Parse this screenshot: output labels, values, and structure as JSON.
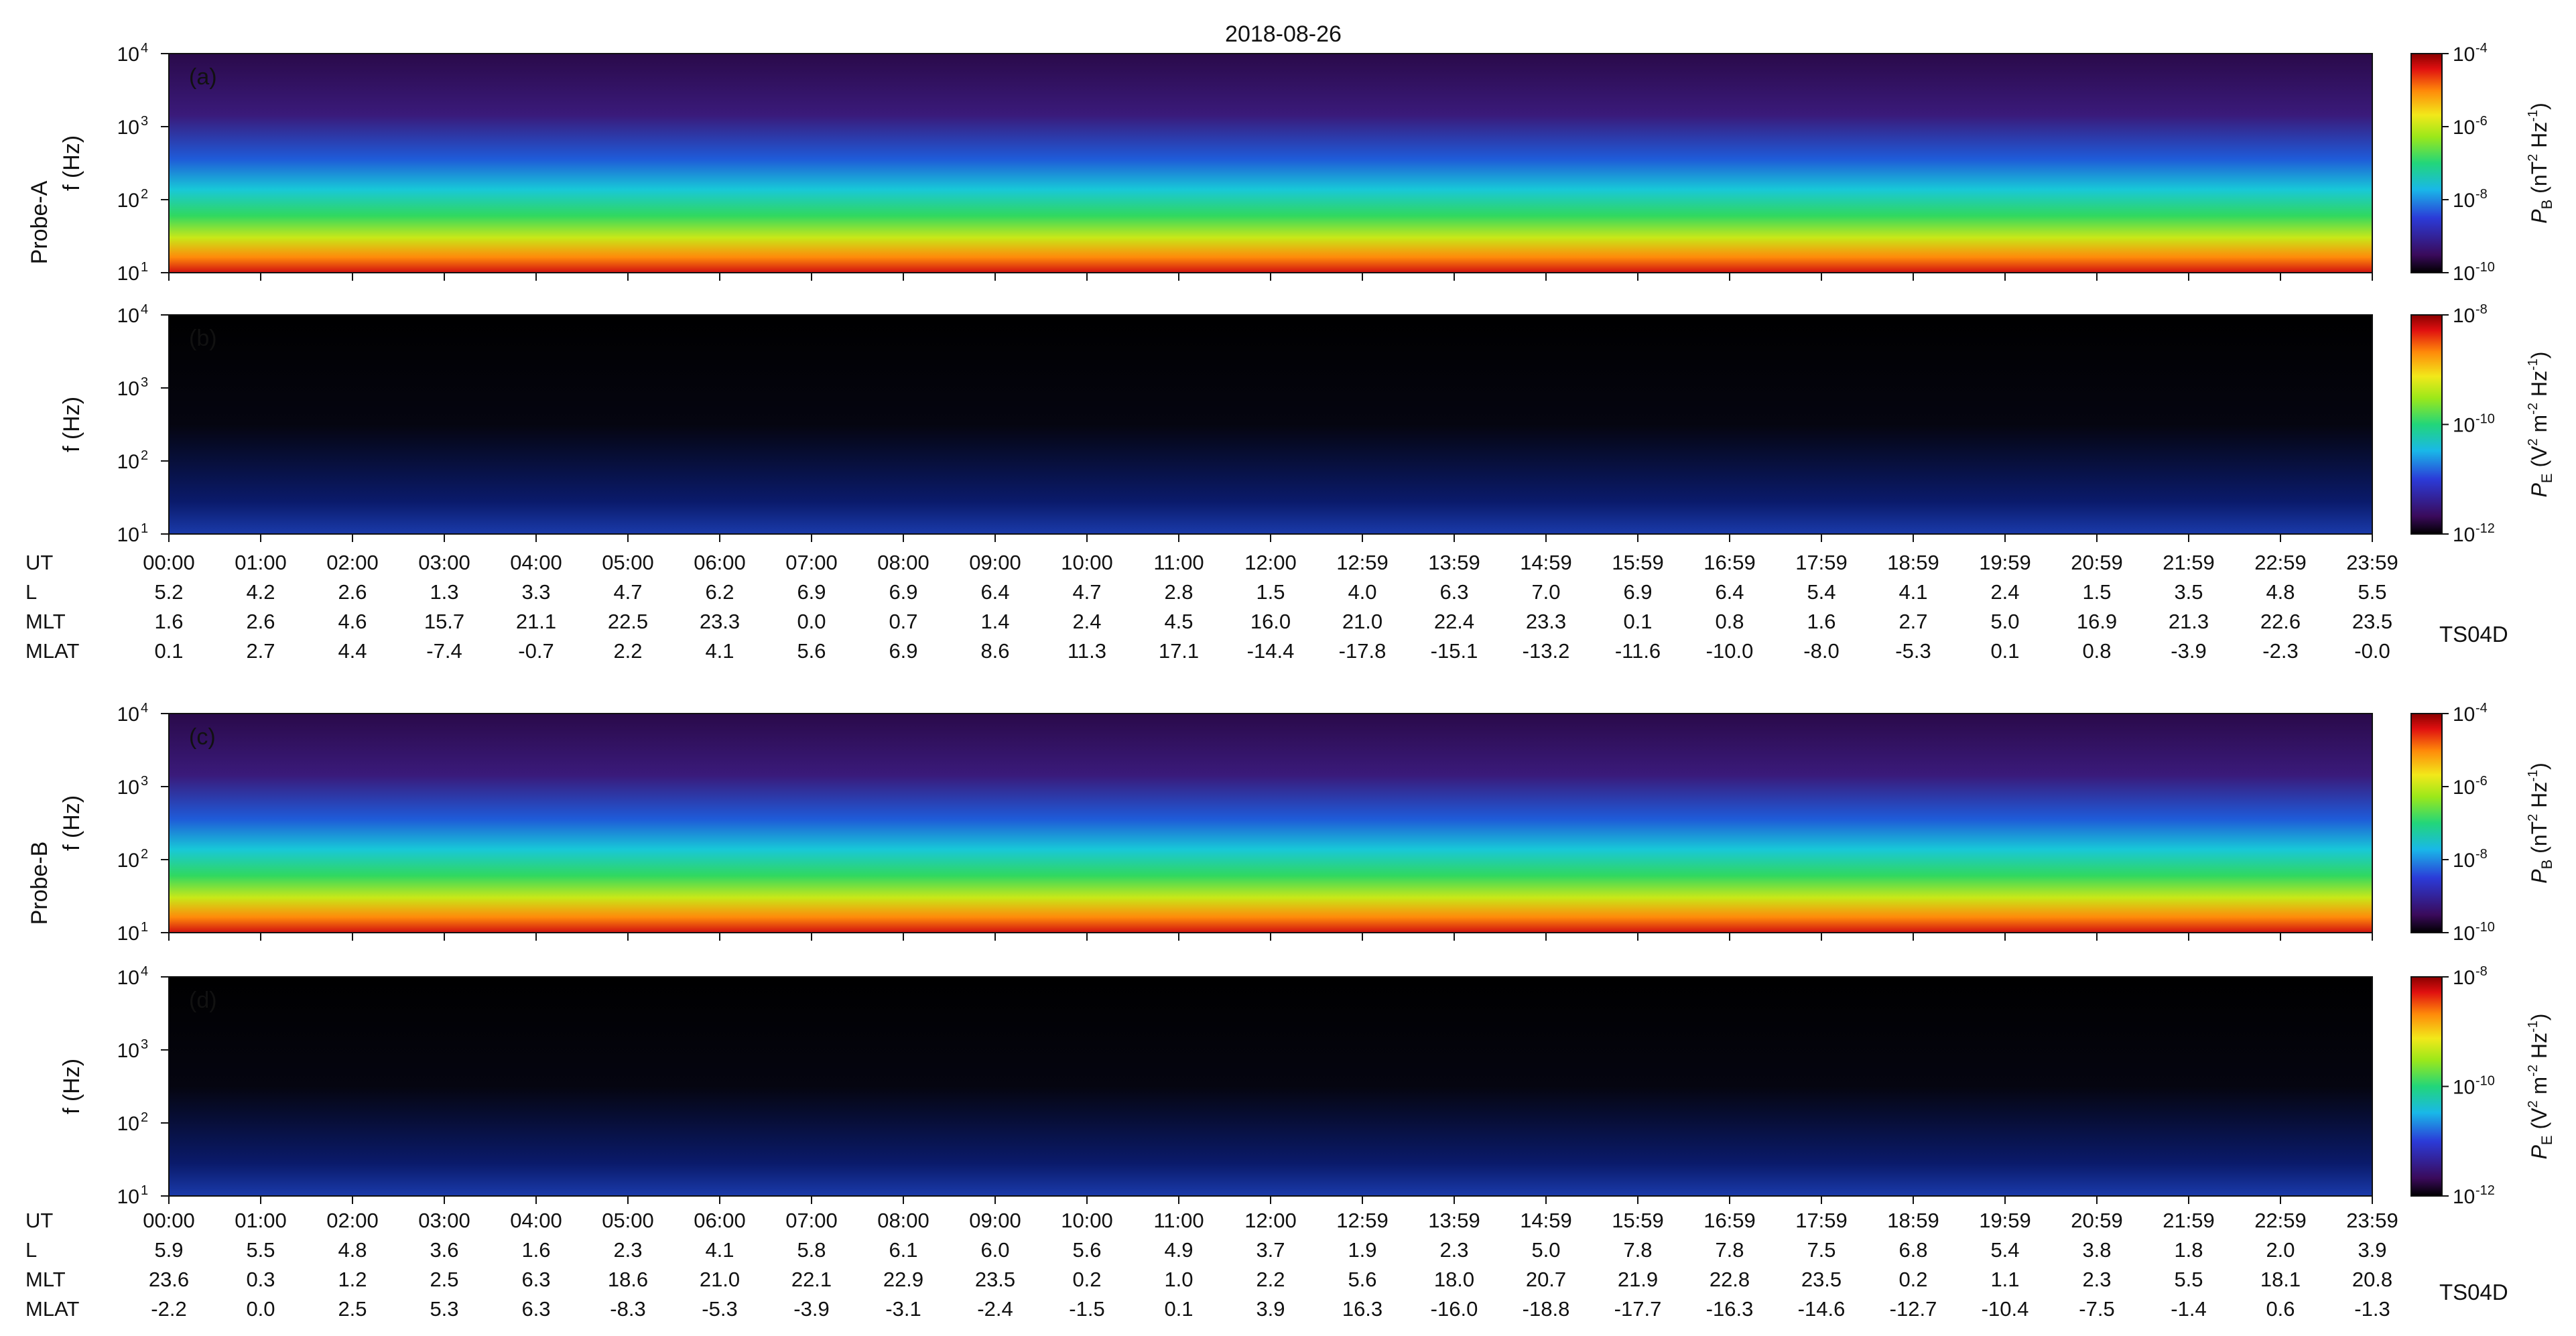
{
  "title": "2018-08-26",
  "colors": {
    "spectrogram_background": "#2a0a4a",
    "electric_background": "#000000",
    "colormap": [
      "#000000",
      "#3a0a5a",
      "#2b3bd8",
      "#19b8e8",
      "#22d67a",
      "#9be81a",
      "#f2e81a",
      "#ff8a0a",
      "#e01010",
      "#8a0000"
    ]
  },
  "chart_data": [
    {
      "type": "heatmap",
      "panel": "(a)",
      "probe": "Probe-A",
      "quantity": "B",
      "ylabel": "f (Hz)",
      "yscale": "log",
      "ylim": [
        10,
        10000
      ],
      "y_ticks": [
        "10",
        "10",
        "10",
        "10"
      ],
      "y_tick_exponents": [
        "1",
        "2",
        "3",
        "4"
      ],
      "colorbar": {
        "label": "P",
        "label_sub": "B",
        "units": "(nT",
        "units_sup": "2",
        "units_mid": " Hz",
        "units_sup2": "-1",
        "units_end": ")",
        "scale": "log",
        "range": [
          1e-10,
          0.0001
        ],
        "tick_base": [
          "10",
          "10",
          "10",
          "10"
        ],
        "tick_exponents": [
          "-4",
          "-6",
          "-8",
          "-10"
        ]
      },
      "grid": false
    },
    {
      "type": "heatmap",
      "panel": "(b)",
      "probe": "Probe-A",
      "quantity": "E",
      "ylabel": "f (Hz)",
      "yscale": "log",
      "ylim": [
        10,
        10000
      ],
      "y_ticks": [
        "10",
        "10",
        "10",
        "10"
      ],
      "y_tick_exponents": [
        "1",
        "2",
        "3",
        "4"
      ],
      "colorbar": {
        "label": "P",
        "label_sub": "E",
        "units": "(V",
        "units_sup": "2",
        "units_mid": " m",
        "units_sup2": "-2",
        "units_mid2": " Hz",
        "units_sup3": "-1",
        "units_end": ")",
        "scale": "log",
        "range": [
          1e-12,
          1e-08
        ],
        "tick_base": [
          "10",
          "10",
          "10"
        ],
        "tick_exponents": [
          "-8",
          "-10",
          "-12"
        ]
      },
      "grid": false
    },
    {
      "type": "heatmap",
      "panel": "(c)",
      "probe": "Probe-B",
      "quantity": "B",
      "ylabel": "f (Hz)",
      "yscale": "log",
      "ylim": [
        10,
        10000
      ],
      "y_ticks": [
        "10",
        "10",
        "10",
        "10"
      ],
      "y_tick_exponents": [
        "1",
        "2",
        "3",
        "4"
      ],
      "colorbar": {
        "label": "P",
        "label_sub": "B",
        "units": "(nT",
        "units_sup": "2",
        "units_mid": " Hz",
        "units_sup2": "-1",
        "units_end": ")",
        "scale": "log",
        "range": [
          1e-10,
          0.0001
        ],
        "tick_base": [
          "10",
          "10",
          "10",
          "10"
        ],
        "tick_exponents": [
          "-4",
          "-6",
          "-8",
          "-10"
        ]
      },
      "grid": false
    },
    {
      "type": "heatmap",
      "panel": "(d)",
      "probe": "Probe-B",
      "quantity": "E",
      "ylabel": "f (Hz)",
      "yscale": "log",
      "ylim": [
        10,
        10000
      ],
      "y_ticks": [
        "10",
        "10",
        "10",
        "10"
      ],
      "y_tick_exponents": [
        "1",
        "2",
        "3",
        "4"
      ],
      "colorbar": {
        "label": "P",
        "label_sub": "E",
        "units": "(V",
        "units_sup": "2",
        "units_mid": " m",
        "units_sup2": "-2",
        "units_mid2": " Hz",
        "units_sup3": "-1",
        "units_end": ")",
        "scale": "log",
        "range": [
          1e-12,
          1e-08
        ],
        "tick_base": [
          "10",
          "10",
          "10"
        ],
        "tick_exponents": [
          "-8",
          "-10",
          "-12"
        ]
      },
      "grid": false
    }
  ],
  "ephemeris": [
    {
      "probe": "Probe-A",
      "model": "TS04D",
      "rows": [
        {
          "label": "UT",
          "values": [
            "00:00",
            "01:00",
            "02:00",
            "03:00",
            "04:00",
            "05:00",
            "06:00",
            "07:00",
            "08:00",
            "09:00",
            "10:00",
            "11:00",
            "12:00",
            "12:59",
            "13:59",
            "14:59",
            "15:59",
            "16:59",
            "17:59",
            "18:59",
            "19:59",
            "20:59",
            "21:59",
            "22:59",
            "23:59"
          ]
        },
        {
          "label": "L",
          "values": [
            "5.2",
            "4.2",
            "2.6",
            "1.3",
            "3.3",
            "4.7",
            "6.2",
            "6.9",
            "6.9",
            "6.4",
            "4.7",
            "2.8",
            "1.5",
            "4.0",
            "6.3",
            "7.0",
            "6.9",
            "6.4",
            "5.4",
            "4.1",
            "2.4",
            "1.5",
            "3.5",
            "4.8",
            "5.5"
          ]
        },
        {
          "label": "MLT",
          "values": [
            "1.6",
            "2.6",
            "4.6",
            "15.7",
            "21.1",
            "22.5",
            "23.3",
            "0.0",
            "0.7",
            "1.4",
            "2.4",
            "4.5",
            "16.0",
            "21.0",
            "22.4",
            "23.3",
            "0.1",
            "0.8",
            "1.6",
            "2.7",
            "5.0",
            "16.9",
            "21.3",
            "22.6",
            "23.5"
          ]
        },
        {
          "label": "MLAT",
          "values": [
            "0.1",
            "2.7",
            "4.4",
            "-7.4",
            "-0.7",
            "2.2",
            "4.1",
            "5.6",
            "6.9",
            "8.6",
            "11.3",
            "17.1",
            "-14.4",
            "-17.8",
            "-15.1",
            "-13.2",
            "-11.6",
            "-10.0",
            "-8.0",
            "-5.3",
            "0.1",
            "0.8",
            "-3.9",
            "-2.3",
            "-0.0"
          ]
        }
      ]
    },
    {
      "probe": "Probe-B",
      "model": "TS04D",
      "rows": [
        {
          "label": "UT",
          "values": [
            "00:00",
            "01:00",
            "02:00",
            "03:00",
            "04:00",
            "05:00",
            "06:00",
            "07:00",
            "08:00",
            "09:00",
            "10:00",
            "11:00",
            "12:00",
            "12:59",
            "13:59",
            "14:59",
            "15:59",
            "16:59",
            "17:59",
            "18:59",
            "19:59",
            "20:59",
            "21:59",
            "22:59",
            "23:59"
          ]
        },
        {
          "label": "L",
          "values": [
            "5.9",
            "5.5",
            "4.8",
            "3.6",
            "1.6",
            "2.3",
            "4.1",
            "5.8",
            "6.1",
            "6.0",
            "5.6",
            "4.9",
            "3.7",
            "1.9",
            "2.3",
            "5.0",
            "7.8",
            "7.8",
            "7.5",
            "6.8",
            "5.4",
            "3.8",
            "1.8",
            "2.0",
            "3.9"
          ]
        },
        {
          "label": "MLT",
          "values": [
            "23.6",
            "0.3",
            "1.2",
            "2.5",
            "6.3",
            "18.6",
            "21.0",
            "22.1",
            "22.9",
            "23.5",
            "0.2",
            "1.0",
            "2.2",
            "5.6",
            "18.0",
            "20.7",
            "21.9",
            "22.8",
            "23.5",
            "0.2",
            "1.1",
            "2.3",
            "5.5",
            "18.1",
            "20.8"
          ]
        },
        {
          "label": "MLAT",
          "values": [
            "-2.2",
            "0.0",
            "2.5",
            "5.3",
            "6.3",
            "-8.3",
            "-5.3",
            "-3.9",
            "-3.1",
            "-2.4",
            "-1.5",
            "0.1",
            "3.9",
            "16.3",
            "-16.0",
            "-18.8",
            "-17.7",
            "-16.3",
            "-14.6",
            "-12.7",
            "-10.4",
            "-7.5",
            "-1.4",
            "0.6",
            "-1.3"
          ]
        }
      ]
    }
  ]
}
